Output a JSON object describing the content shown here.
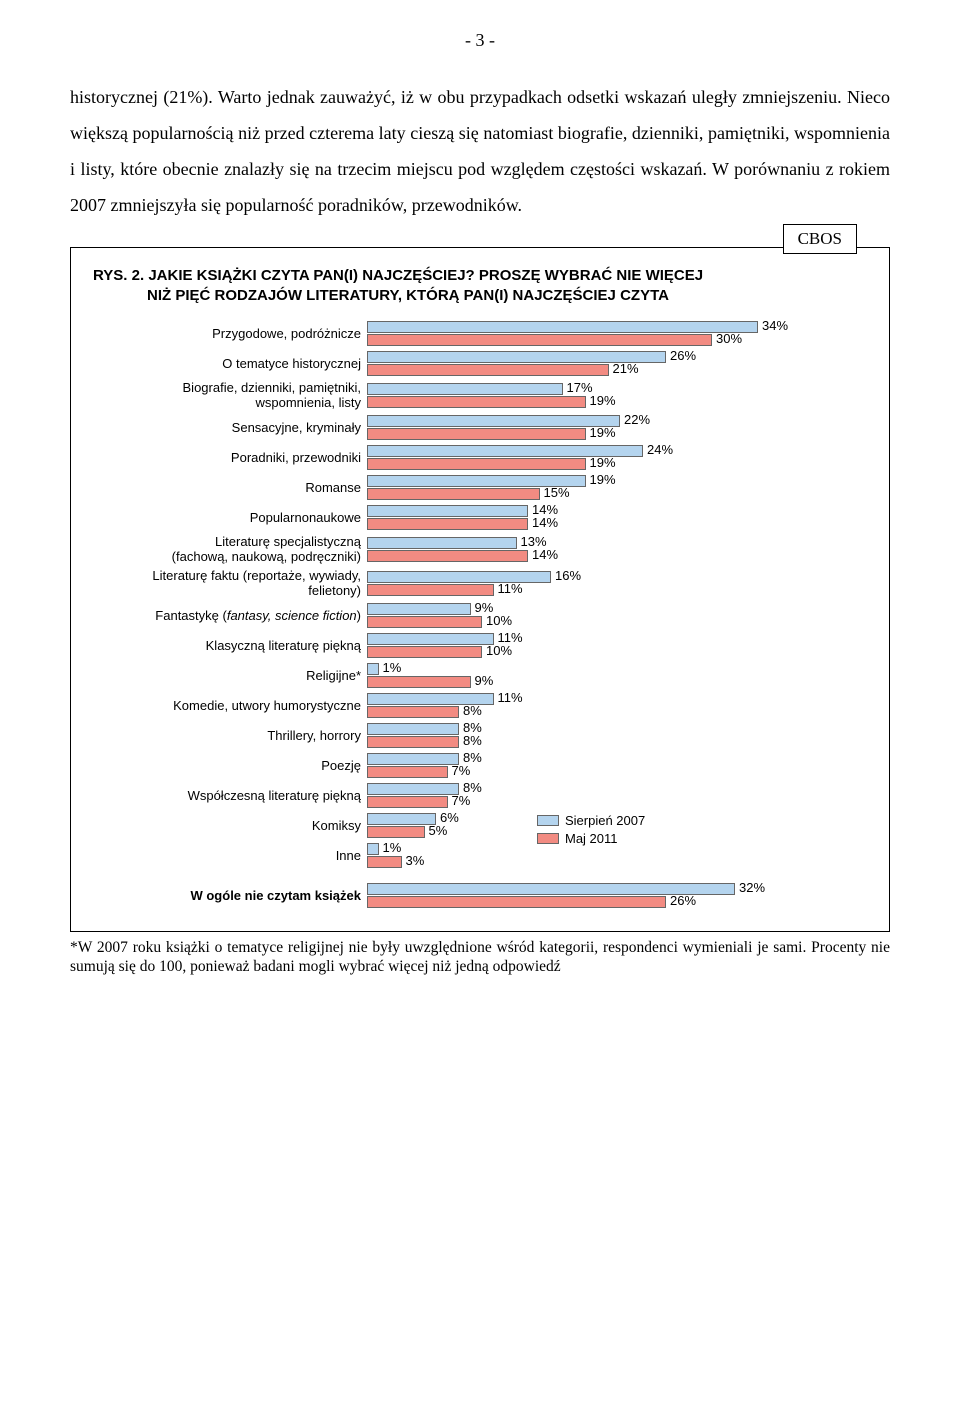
{
  "page_number": "- 3 -",
  "paragraph": "historycznej (21%). Warto jednak zauważyć, iż w obu przypadkach odsetki wskazań uległy zmniejszeniu. Nieco większą popularnością niż przed czterema laty cieszą się natomiast biografie, dzienniki, pamiętniki, wspomnienia i listy, które obecnie znalazły się na trzecim miejscu pod względem częstości wskazań. W porównaniu z rokiem 2007 zmniejszyła się popularność poradników, przewodników.",
  "cbos_label": "CBOS",
  "rys_title_lead": "RYS. 2. ",
  "rys_title_rest1": "JAKIE KSIĄŻKI CZYTA PAN(I) NAJCZĘŚCIEJ? PROSZĘ WYBRAĆ NIE WIĘCEJ",
  "rys_title_rest2": "NIŻ PIĘĆ RODZAJÓW LITERATURY, KTÓRĄ PAN(I) NAJCZĘŚCIEJ CZYTA",
  "chart": {
    "scale_max": 40,
    "color_2007": "#b4d4ee",
    "color_2011": "#f28b82",
    "border_color": "#666666",
    "legend_2007": "Sierpień 2007",
    "legend_2011": "Maj 2011",
    "items": [
      {
        "label": "Przygodowe, podróżnicze",
        "v2007": 34,
        "v2011": 30
      },
      {
        "label": "O tematyce historycznej",
        "v2007": 26,
        "v2011": 21
      },
      {
        "label": "Biografie, dzienniki, pamiętniki,\nwspomnienia, listy",
        "v2007": 17,
        "v2011": 19
      },
      {
        "label": "Sensacyjne, kryminały",
        "v2007": 22,
        "v2011": 19
      },
      {
        "label": "Poradniki, przewodniki",
        "v2007": 24,
        "v2011": 19
      },
      {
        "label": "Romanse",
        "v2007": 19,
        "v2011": 15
      },
      {
        "label": "Popularnonaukowe",
        "v2007": 14,
        "v2011": 14
      },
      {
        "label": "Literaturę specjalistyczną\n(fachową, naukową, podręczniki)",
        "v2007": 13,
        "v2011": 14
      },
      {
        "label": "Literaturę faktu (reportaże, wywiady,\nfelietony)",
        "v2007": 16,
        "v2011": 11
      },
      {
        "label": "Fantastykę (fantasy, science fiction)",
        "v2007": 9,
        "v2011": 10,
        "italic": true
      },
      {
        "label": "Klasyczną literaturę piękną",
        "v2007": 11,
        "v2011": 10
      },
      {
        "label": "Religijne*",
        "v2007": 1,
        "v2011": 9
      },
      {
        "label": "Komedie, utwory humorystyczne",
        "v2007": 11,
        "v2011": 8
      },
      {
        "label": "Thrillery, horrory",
        "v2007": 8,
        "v2011": 8
      },
      {
        "label": "Poezję",
        "v2007": 8,
        "v2011": 7
      },
      {
        "label": "Współczesną literaturę piękną",
        "v2007": 8,
        "v2011": 7
      },
      {
        "label": "Komiksy",
        "v2007": 6,
        "v2011": 5
      },
      {
        "label": "Inne",
        "v2007": 1,
        "v2011": 3
      },
      {
        "label": "W ogóle nie czytam książek",
        "v2007": 32,
        "v2011": 26,
        "bold": true,
        "gap": true
      }
    ]
  },
  "footnote": "*W 2007 roku książki o tematyce religijnej nie były uwzględnione wśród kategorii, respondenci wymieniali je sami. Procenty nie sumują się do 100, ponieważ badani mogli wybrać więcej niż jedną odpowiedź"
}
